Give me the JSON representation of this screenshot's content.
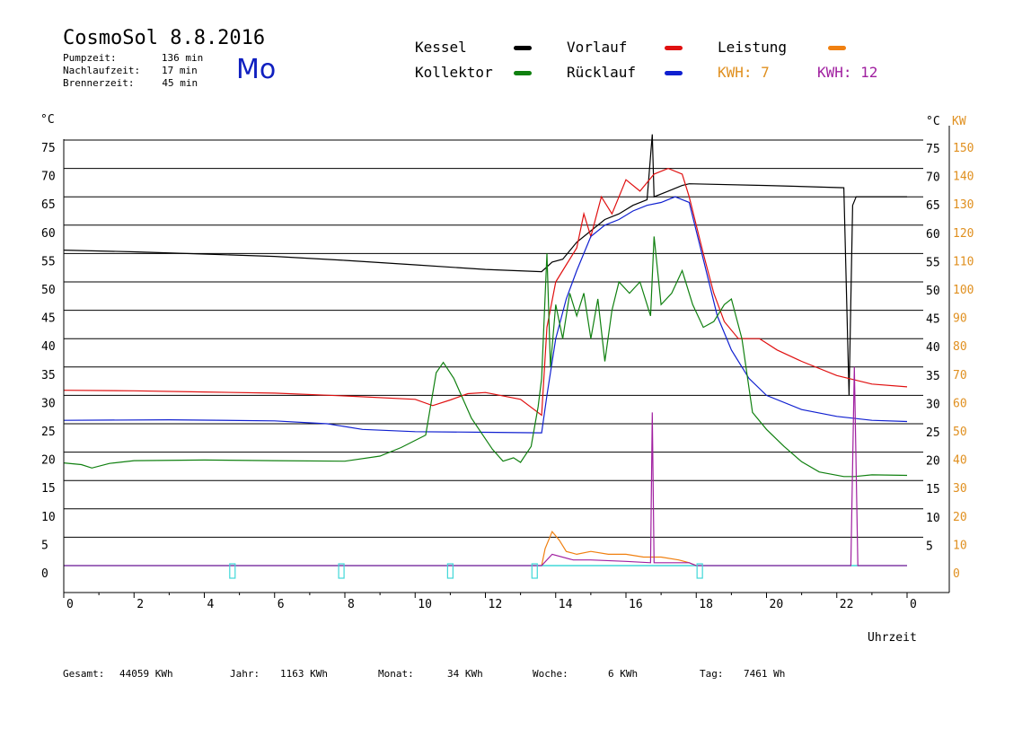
{
  "header": {
    "title": "CosmoSol 8.8.2016",
    "day": "Mo",
    "pumpzeit_label": "Pumpzeit:",
    "pumpzeit_value": "136 min",
    "nachlaufzeit_label": "Nachlaufzeit:",
    "nachlaufzeit_value": "17 min",
    "brennerzeit_label": "Brennerzeit:",
    "brennerzeit_value": "45 min"
  },
  "legend": {
    "kessel": {
      "label": "Kessel",
      "color": "#000000"
    },
    "vorlauf": {
      "label": "Vorlauf",
      "color": "#e01010"
    },
    "leistung": {
      "label": "Leistung",
      "color": "#f08010"
    },
    "kollektor": {
      "label": "Kollektor",
      "color": "#108010"
    },
    "ruecklauf": {
      "label": "Rücklauf",
      "color": "#1020d0"
    },
    "kwh1": {
      "label": "KWH: 7",
      "color": "#e09020"
    },
    "kwh2": {
      "label": "KWH: 12",
      "color": "#a020a0"
    }
  },
  "footer": {
    "gesamt_label": "Gesamt:",
    "gesamt_value": "44059 KWh",
    "jahr_label": "Jahr:",
    "jahr_value": "1163 KWh",
    "monat_label": "Monat:",
    "monat_value": "34 KWh",
    "woche_label": "Woche:",
    "woche_value": "6 KWh",
    "tag_label": "Tag:",
    "tag_value": "7461 Wh"
  },
  "chart_data": {
    "type": "line",
    "xlabel": "Uhrzeit",
    "ylabel_left": "°C",
    "ylabel_right_temp": "°C",
    "ylabel_right_power": "KW",
    "x_range": [
      0,
      24
    ],
    "y_range": [
      0,
      75
    ],
    "power_range": [
      0,
      150
    ],
    "x_ticks": [
      "0",
      "2",
      "4",
      "6",
      "8",
      "10",
      "12",
      "14",
      "16",
      "18",
      "20",
      "22",
      "0"
    ],
    "y_ticks_left": [
      "0",
      "5",
      "10",
      "15",
      "20",
      "25",
      "30",
      "35",
      "40",
      "45",
      "50",
      "55",
      "60",
      "65",
      "70",
      "75"
    ],
    "y_ticks_right_temp": [
      "5",
      "10",
      "15",
      "20",
      "25",
      "30",
      "35",
      "40",
      "45",
      "50",
      "55",
      "60",
      "65",
      "70",
      "75"
    ],
    "y_ticks_right_power": [
      "0",
      "10",
      "20",
      "30",
      "40",
      "50",
      "60",
      "70",
      "80",
      "90",
      "100",
      "110",
      "120",
      "130",
      "140",
      "150"
    ],
    "grid": true,
    "series": [
      {
        "name": "Kessel",
        "color": "#000000",
        "points": [
          [
            0,
            55.6
          ],
          [
            2,
            55.3
          ],
          [
            4,
            54.9
          ],
          [
            6,
            54.5
          ],
          [
            8,
            53.8
          ],
          [
            10,
            53.0
          ],
          [
            12,
            52.2
          ],
          [
            13.6,
            51.8
          ],
          [
            13.9,
            53.5
          ],
          [
            14.2,
            54
          ],
          [
            14.6,
            57
          ],
          [
            15.0,
            59
          ],
          [
            15.4,
            61
          ],
          [
            15.8,
            62
          ],
          [
            16.2,
            63.5
          ],
          [
            16.6,
            64.5
          ],
          [
            16.75,
            76
          ],
          [
            16.8,
            65
          ],
          [
            17.2,
            66
          ],
          [
            17.6,
            67
          ],
          [
            17.8,
            67.3
          ],
          [
            20,
            67
          ],
          [
            22.2,
            66.6
          ],
          [
            22.35,
            30
          ],
          [
            22.45,
            63.5
          ],
          [
            22.55,
            65
          ],
          [
            24,
            65
          ]
        ]
      },
      {
        "name": "Vorlauf",
        "color": "#e01010",
        "points": [
          [
            0,
            30.9
          ],
          [
            2,
            30.8
          ],
          [
            4,
            30.6
          ],
          [
            6,
            30.4
          ],
          [
            8,
            29.9
          ],
          [
            10,
            29.3
          ],
          [
            10.5,
            28.2
          ],
          [
            11,
            29.2
          ],
          [
            11.5,
            30.3
          ],
          [
            12,
            30.5
          ],
          [
            13,
            29.3
          ],
          [
            13.6,
            26.5
          ],
          [
            13.75,
            42
          ],
          [
            14.0,
            50
          ],
          [
            14.3,
            53
          ],
          [
            14.6,
            56
          ],
          [
            14.8,
            62
          ],
          [
            15.0,
            58
          ],
          [
            15.3,
            65
          ],
          [
            15.6,
            62
          ],
          [
            16.0,
            68
          ],
          [
            16.4,
            66
          ],
          [
            16.8,
            69
          ],
          [
            17.2,
            70
          ],
          [
            17.6,
            69
          ],
          [
            17.8,
            65
          ],
          [
            18.2,
            55
          ],
          [
            18.5,
            48
          ],
          [
            18.8,
            43
          ],
          [
            19.2,
            40
          ],
          [
            19.8,
            40
          ],
          [
            20.3,
            38
          ],
          [
            21,
            36
          ],
          [
            22,
            33.5
          ],
          [
            23,
            32
          ],
          [
            24,
            31.5
          ]
        ]
      },
      {
        "name": "Rücklauf",
        "color": "#1020d0",
        "points": [
          [
            0,
            25.6
          ],
          [
            3,
            25.7
          ],
          [
            6,
            25.5
          ],
          [
            7.5,
            25
          ],
          [
            8.5,
            24
          ],
          [
            10,
            23.6
          ],
          [
            12,
            23.5
          ],
          [
            13.6,
            23.4
          ],
          [
            13.75,
            30
          ],
          [
            14.0,
            40
          ],
          [
            14.3,
            47
          ],
          [
            14.6,
            52
          ],
          [
            15.0,
            58
          ],
          [
            15.4,
            60
          ],
          [
            15.8,
            61
          ],
          [
            16.2,
            62.5
          ],
          [
            16.6,
            63.5
          ],
          [
            17.0,
            64
          ],
          [
            17.4,
            65
          ],
          [
            17.8,
            64
          ],
          [
            18.2,
            54
          ],
          [
            18.6,
            44
          ],
          [
            19.0,
            38
          ],
          [
            19.5,
            33
          ],
          [
            20,
            30
          ],
          [
            21,
            27.5
          ],
          [
            22,
            26.3
          ],
          [
            23,
            25.6
          ],
          [
            24,
            25.4
          ]
        ]
      },
      {
        "name": "Kollektor",
        "color": "#108010",
        "points": [
          [
            0,
            18.1
          ],
          [
            0.5,
            17.8
          ],
          [
            0.8,
            17.2
          ],
          [
            1.3,
            18.0
          ],
          [
            2,
            18.5
          ],
          [
            4,
            18.6
          ],
          [
            6,
            18.5
          ],
          [
            8,
            18.4
          ],
          [
            9,
            19.3
          ],
          [
            9.6,
            20.8
          ],
          [
            10.3,
            23
          ],
          [
            10.6,
            34
          ],
          [
            10.8,
            35.8
          ],
          [
            11.1,
            33
          ],
          [
            11.6,
            26
          ],
          [
            12.2,
            20.5
          ],
          [
            12.5,
            18.4
          ],
          [
            12.8,
            19
          ],
          [
            13.0,
            18.2
          ],
          [
            13.3,
            21
          ],
          [
            13.5,
            28
          ],
          [
            13.6,
            33
          ],
          [
            13.75,
            55
          ],
          [
            13.85,
            35
          ],
          [
            14.0,
            46
          ],
          [
            14.2,
            40
          ],
          [
            14.4,
            48
          ],
          [
            14.6,
            44
          ],
          [
            14.8,
            48
          ],
          [
            15.0,
            40
          ],
          [
            15.2,
            47
          ],
          [
            15.4,
            36
          ],
          [
            15.6,
            45
          ],
          [
            15.8,
            50
          ],
          [
            16.1,
            48
          ],
          [
            16.4,
            50
          ],
          [
            16.7,
            44
          ],
          [
            16.8,
            58
          ],
          [
            17.0,
            46
          ],
          [
            17.3,
            48
          ],
          [
            17.6,
            52
          ],
          [
            17.9,
            46
          ],
          [
            18.2,
            42
          ],
          [
            18.5,
            43
          ],
          [
            18.8,
            46
          ],
          [
            19.0,
            47
          ],
          [
            19.3,
            40
          ],
          [
            19.6,
            27
          ],
          [
            20,
            24
          ],
          [
            20.5,
            21
          ],
          [
            21,
            18.3
          ],
          [
            21.5,
            16.5
          ],
          [
            22.2,
            15.7
          ],
          [
            22.5,
            15.7
          ],
          [
            23.0,
            16
          ],
          [
            24,
            15.9
          ]
        ]
      }
    ],
    "power_series": [
      {
        "name": "Leistung",
        "color": "#f08010",
        "points": [
          [
            13.6,
            0
          ],
          [
            13.7,
            6
          ],
          [
            13.9,
            12
          ],
          [
            14.1,
            9
          ],
          [
            14.3,
            5
          ],
          [
            14.6,
            4
          ],
          [
            15.0,
            5
          ],
          [
            15.5,
            4
          ],
          [
            16.0,
            4
          ],
          [
            16.5,
            3
          ],
          [
            17.0,
            3
          ],
          [
            17.5,
            2
          ],
          [
            17.8,
            1
          ],
          [
            18.0,
            0
          ]
        ]
      },
      {
        "name": "KWH 12",
        "color": "#a020a0",
        "points": [
          [
            0,
            0
          ],
          [
            13.6,
            0
          ],
          [
            13.9,
            4
          ],
          [
            14.5,
            2
          ],
          [
            15.0,
            2
          ],
          [
            16.0,
            1.5
          ],
          [
            16.7,
            1
          ],
          [
            16.75,
            54
          ],
          [
            16.8,
            1
          ],
          [
            17.8,
            1
          ],
          [
            18.0,
            0
          ],
          [
            22.4,
            0
          ],
          [
            22.5,
            70
          ],
          [
            22.6,
            0
          ],
          [
            24,
            0
          ]
        ]
      }
    ],
    "idle_baseline_color": "#40d8d8",
    "pump_markers_hours": [
      4.8,
      7.9,
      11.0,
      13.4,
      18.1
    ]
  }
}
